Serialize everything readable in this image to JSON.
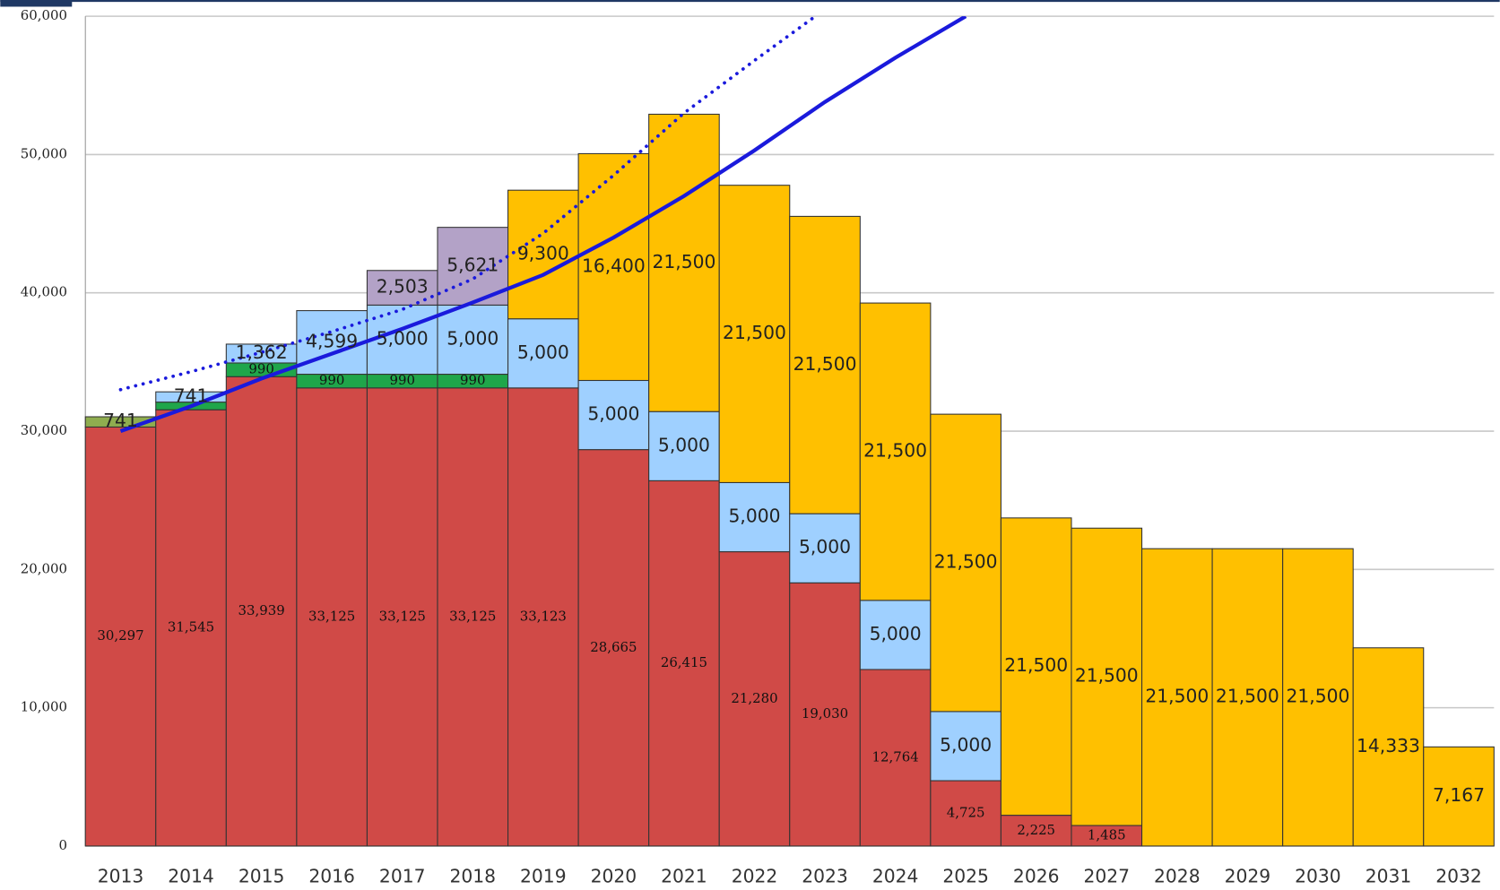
{
  "chart_data": {
    "type": "bar",
    "stacked": true,
    "categories": [
      "2013",
      "2014",
      "2015",
      "2016",
      "2017",
      "2018",
      "2019",
      "2020",
      "2021",
      "2022",
      "2023",
      "2024",
      "2025",
      "2026",
      "2027",
      "2028",
      "2029",
      "2030",
      "2031",
      "2032"
    ],
    "series": [
      {
        "color": "#d04a47",
        "values": [
          30297,
          31545,
          33939,
          33125,
          33125,
          33125,
          33123,
          28665,
          26415,
          21280,
          19030,
          12764,
          4725,
          2225,
          1485,
          null,
          null,
          null,
          null,
          null
        ],
        "value_labels": [
          "30,297",
          "31,545",
          "33,939",
          "33,125",
          "33,125",
          "33,125",
          "33,123",
          "28,665",
          "26,415",
          "21,280",
          "19,030",
          "12,764",
          "4,725",
          "2,225",
          "1,485",
          null,
          null,
          null,
          null,
          null
        ]
      },
      {
        "color": "#8fad4f",
        "values": [
          741,
          null,
          null,
          null,
          null,
          null,
          null,
          null,
          null,
          null,
          null,
          null,
          null,
          null,
          null,
          null,
          null,
          null,
          null,
          null
        ],
        "value_labels": [
          "741",
          null,
          null,
          null,
          null,
          null,
          null,
          null,
          null,
          null,
          null,
          null,
          null,
          null,
          null,
          null,
          null,
          null,
          null,
          null
        ]
      },
      {
        "color": "#1fa64a",
        "values": [
          null,
          555,
          990,
          990,
          990,
          990,
          null,
          null,
          null,
          null,
          null,
          null,
          null,
          null,
          null,
          null,
          null,
          null,
          null,
          null
        ],
        "value_labels": [
          null,
          null,
          "990",
          "990",
          "990",
          "990",
          null,
          null,
          null,
          null,
          null,
          null,
          null,
          null,
          null,
          null,
          null,
          null,
          null,
          null
        ]
      },
      {
        "color": "#9fd0ff",
        "values": [
          null,
          741,
          1362,
          4599,
          5000,
          5000,
          5000,
          5000,
          5000,
          5000,
          5000,
          5000,
          5000,
          null,
          null,
          null,
          null,
          null,
          null,
          null
        ],
        "value_labels": [
          null,
          "741",
          "1,362",
          "4,599",
          "5,000",
          "5,000",
          "5,000",
          "5,000",
          "5,000",
          "5,000",
          "5,000",
          "5,000",
          "5,000",
          null,
          null,
          null,
          null,
          null,
          null,
          null
        ]
      },
      {
        "color": "#b3a2c7",
        "values": [
          null,
          null,
          null,
          null,
          2503,
          5621,
          null,
          null,
          null,
          null,
          null,
          null,
          null,
          null,
          null,
          null,
          null,
          null,
          null,
          null
        ],
        "value_labels": [
          null,
          null,
          null,
          null,
          "2,503",
          "5,621",
          null,
          null,
          null,
          null,
          null,
          null,
          null,
          null,
          null,
          null,
          null,
          null,
          null,
          null
        ]
      },
      {
        "color": "#ffc000",
        "values": [
          null,
          null,
          null,
          null,
          null,
          null,
          9300,
          16400,
          21500,
          21500,
          21500,
          21500,
          21500,
          21500,
          21500,
          21500,
          21500,
          21500,
          14333,
          7167
        ],
        "value_labels": [
          null,
          null,
          null,
          null,
          null,
          null,
          "9,300",
          "16,400",
          "21,500",
          "21,500",
          "21,500",
          "21,500",
          "21,500",
          "21,500",
          "21,500",
          "21,500",
          "21,500",
          "21,500",
          "14,333",
          "7,167"
        ]
      }
    ],
    "lines": [
      {
        "color": "#1a1adc",
        "style": "solid",
        "values": [
          30000,
          31800,
          33800,
          35600,
          37400,
          39300,
          41300,
          44000,
          47000,
          50300,
          53800,
          57000,
          60000,
          null,
          null,
          null,
          null,
          null,
          null,
          null
        ]
      },
      {
        "color": "#1a1adc",
        "style": "dotted",
        "values": [
          33000,
          34300,
          35700,
          37200,
          38800,
          41000,
          44300,
          48500,
          53000,
          56800,
          60500,
          null,
          null,
          null,
          null,
          null,
          null,
          null,
          null,
          null
        ]
      }
    ],
    "ylim": [
      0,
      60000
    ],
    "yticks": [
      0,
      {
        "value": 10000,
        "label": "10,000"
      },
      {
        "value": 20000,
        "label": "20,000"
      },
      {
        "value": 30000,
        "label": "30,000"
      },
      {
        "value": 40000,
        "label": "40,000"
      },
      {
        "value": 50000,
        "label": "50,000"
      },
      {
        "value": 60000,
        "label": "60,000"
      }
    ],
    "grid": true
  }
}
